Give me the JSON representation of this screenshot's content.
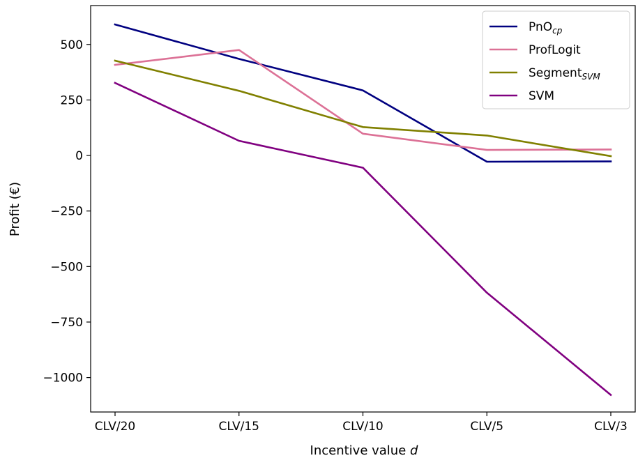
{
  "chart_data": {
    "type": "line",
    "title": "",
    "xlabel": "Incentive value",
    "xlabel_var": "d",
    "ylabel": "Profit (€)",
    "categories": [
      "CLV/20",
      "CLV/15",
      "CLV/10",
      "CLV/5",
      "CLV/3"
    ],
    "yticks": [
      {
        "value": 500,
        "label": "500"
      },
      {
        "value": 250,
        "label": "250"
      },
      {
        "value": 0,
        "label": "0"
      },
      {
        "value": -250,
        "label": "−250"
      },
      {
        "value": -500,
        "label": "−500"
      },
      {
        "value": -750,
        "label": "−750"
      },
      {
        "value": -1000,
        "label": "−1000"
      }
    ],
    "ylim": [
      -1155,
      675
    ],
    "grid": false,
    "legend_position": "top-right",
    "series": [
      {
        "name": "PnO",
        "name_sub": "cp",
        "color": "#000080",
        "values": [
          590,
          435,
          293,
          -28,
          -27
        ]
      },
      {
        "name": "ProfLogit",
        "name_sub": "",
        "color": "#dc7196",
        "values": [
          408,
          475,
          98,
          25,
          27
        ]
      },
      {
        "name": "Segment",
        "name_sub": "SVM",
        "color": "#808000",
        "values": [
          427,
          291,
          128,
          90,
          -3
        ]
      },
      {
        "name": "SVM",
        "name_sub": "",
        "color": "#800080",
        "values": [
          327,
          66,
          -55,
          -618,
          -1078
        ]
      }
    ]
  }
}
